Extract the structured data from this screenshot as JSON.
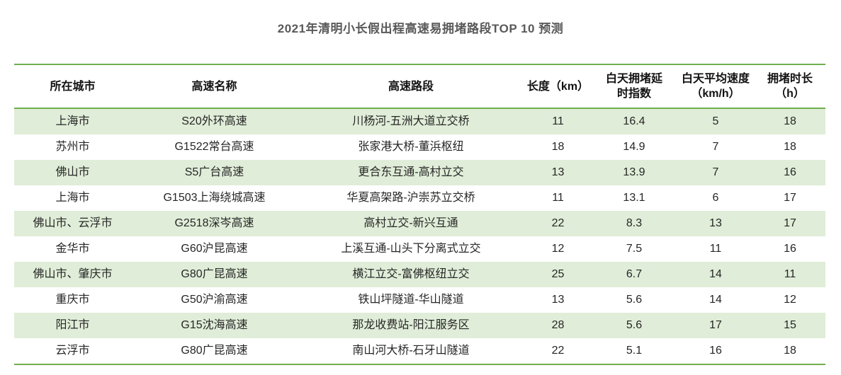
{
  "chart_data": {
    "type": "table",
    "title": "2021年清明小长假出程高速易拥堵路段TOP 10 预测",
    "columns": [
      "所在城市",
      "高速名称",
      "高速路段",
      "长度（km）",
      "白天拥堵延\n时指数",
      "白天平均速度\n（km/h）",
      "拥堵时长\n（h）"
    ],
    "rows": [
      [
        "上海市",
        "S20外环高速",
        "川杨河-五洲大道立交桥",
        "11",
        "16.4",
        "5",
        "18"
      ],
      [
        "苏州市",
        "G1522常台高速",
        "张家港大桥-董浜枢纽",
        "18",
        "14.9",
        "7",
        "18"
      ],
      [
        "佛山市",
        "S5广台高速",
        "更合东互通-高村立交",
        "13",
        "13.9",
        "7",
        "16"
      ],
      [
        "上海市",
        "G1503上海绕城高速",
        "华夏高架路-沪崇苏立交桥",
        "11",
        "13.1",
        "6",
        "17"
      ],
      [
        "佛山市、云浮市",
        "G2518深岑高速",
        "高村立交-新兴互通",
        "22",
        "8.3",
        "13",
        "17"
      ],
      [
        "金华市",
        "G60沪昆高速",
        "上溪互通-山头下分离式立交",
        "12",
        "7.5",
        "11",
        "16"
      ],
      [
        "佛山市、肇庆市",
        "G80广昆高速",
        "横江立交-富佛枢纽立交",
        "25",
        "6.7",
        "14",
        "11"
      ],
      [
        "重庆市",
        "G50沪渝高速",
        "铁山坪隧道-华山隧道",
        "13",
        "5.6",
        "14",
        "12"
      ],
      [
        "阳江市",
        "G15沈海高速",
        "那龙收费站-阳江服务区",
        "28",
        "5.6",
        "17",
        "15"
      ],
      [
        "云浮市",
        "G80广昆高速",
        "南山河大桥-石牙山隧道",
        "22",
        "5.1",
        "16",
        "18"
      ]
    ],
    "layout_hints": {
      "row_striping": "alternating light green starting with first data row",
      "borders": "green horizontal rules above header, below header, below last row",
      "alignment": "all cells centered"
    }
  },
  "colors": {
    "accent_green_rule": "#6fae4e",
    "row_alt_green": "#e0edd8",
    "title_gray": "#595959",
    "header_text": "#111111",
    "cell_text": "#262626",
    "background": "#ffffff"
  }
}
